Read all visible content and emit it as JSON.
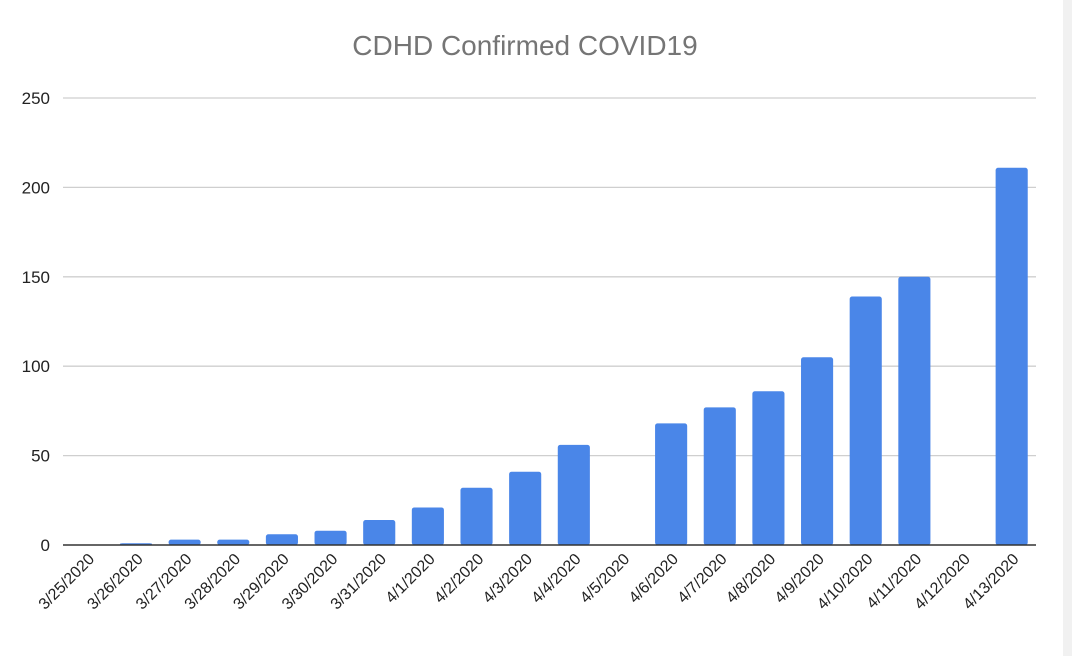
{
  "chart_data": {
    "type": "bar",
    "title": "CDHD Confirmed COVID19",
    "xlabel": "",
    "ylabel": "",
    "ylim": [
      0,
      250
    ],
    "yticks": [
      0,
      50,
      100,
      150,
      200,
      250
    ],
    "grid": true,
    "legend": "none",
    "bar_color": "#4a86e8",
    "categories": [
      "3/25/2020",
      "3/26/2020",
      "3/27/2020",
      "3/28/2020",
      "3/29/2020",
      "3/30/2020",
      "3/31/2020",
      "4/1/2020",
      "4/2/2020",
      "4/3/2020",
      "4/4/2020",
      "4/5/2020",
      "4/6/2020",
      "4/7/2020",
      "4/8/2020",
      "4/9/2020",
      "4/10/2020",
      "4/11/2020",
      "4/12/2020",
      "4/13/2020"
    ],
    "values": [
      0,
      1,
      3,
      3,
      6,
      8,
      14,
      21,
      32,
      41,
      56,
      0,
      68,
      77,
      86,
      105,
      139,
      150,
      0,
      211
    ]
  }
}
